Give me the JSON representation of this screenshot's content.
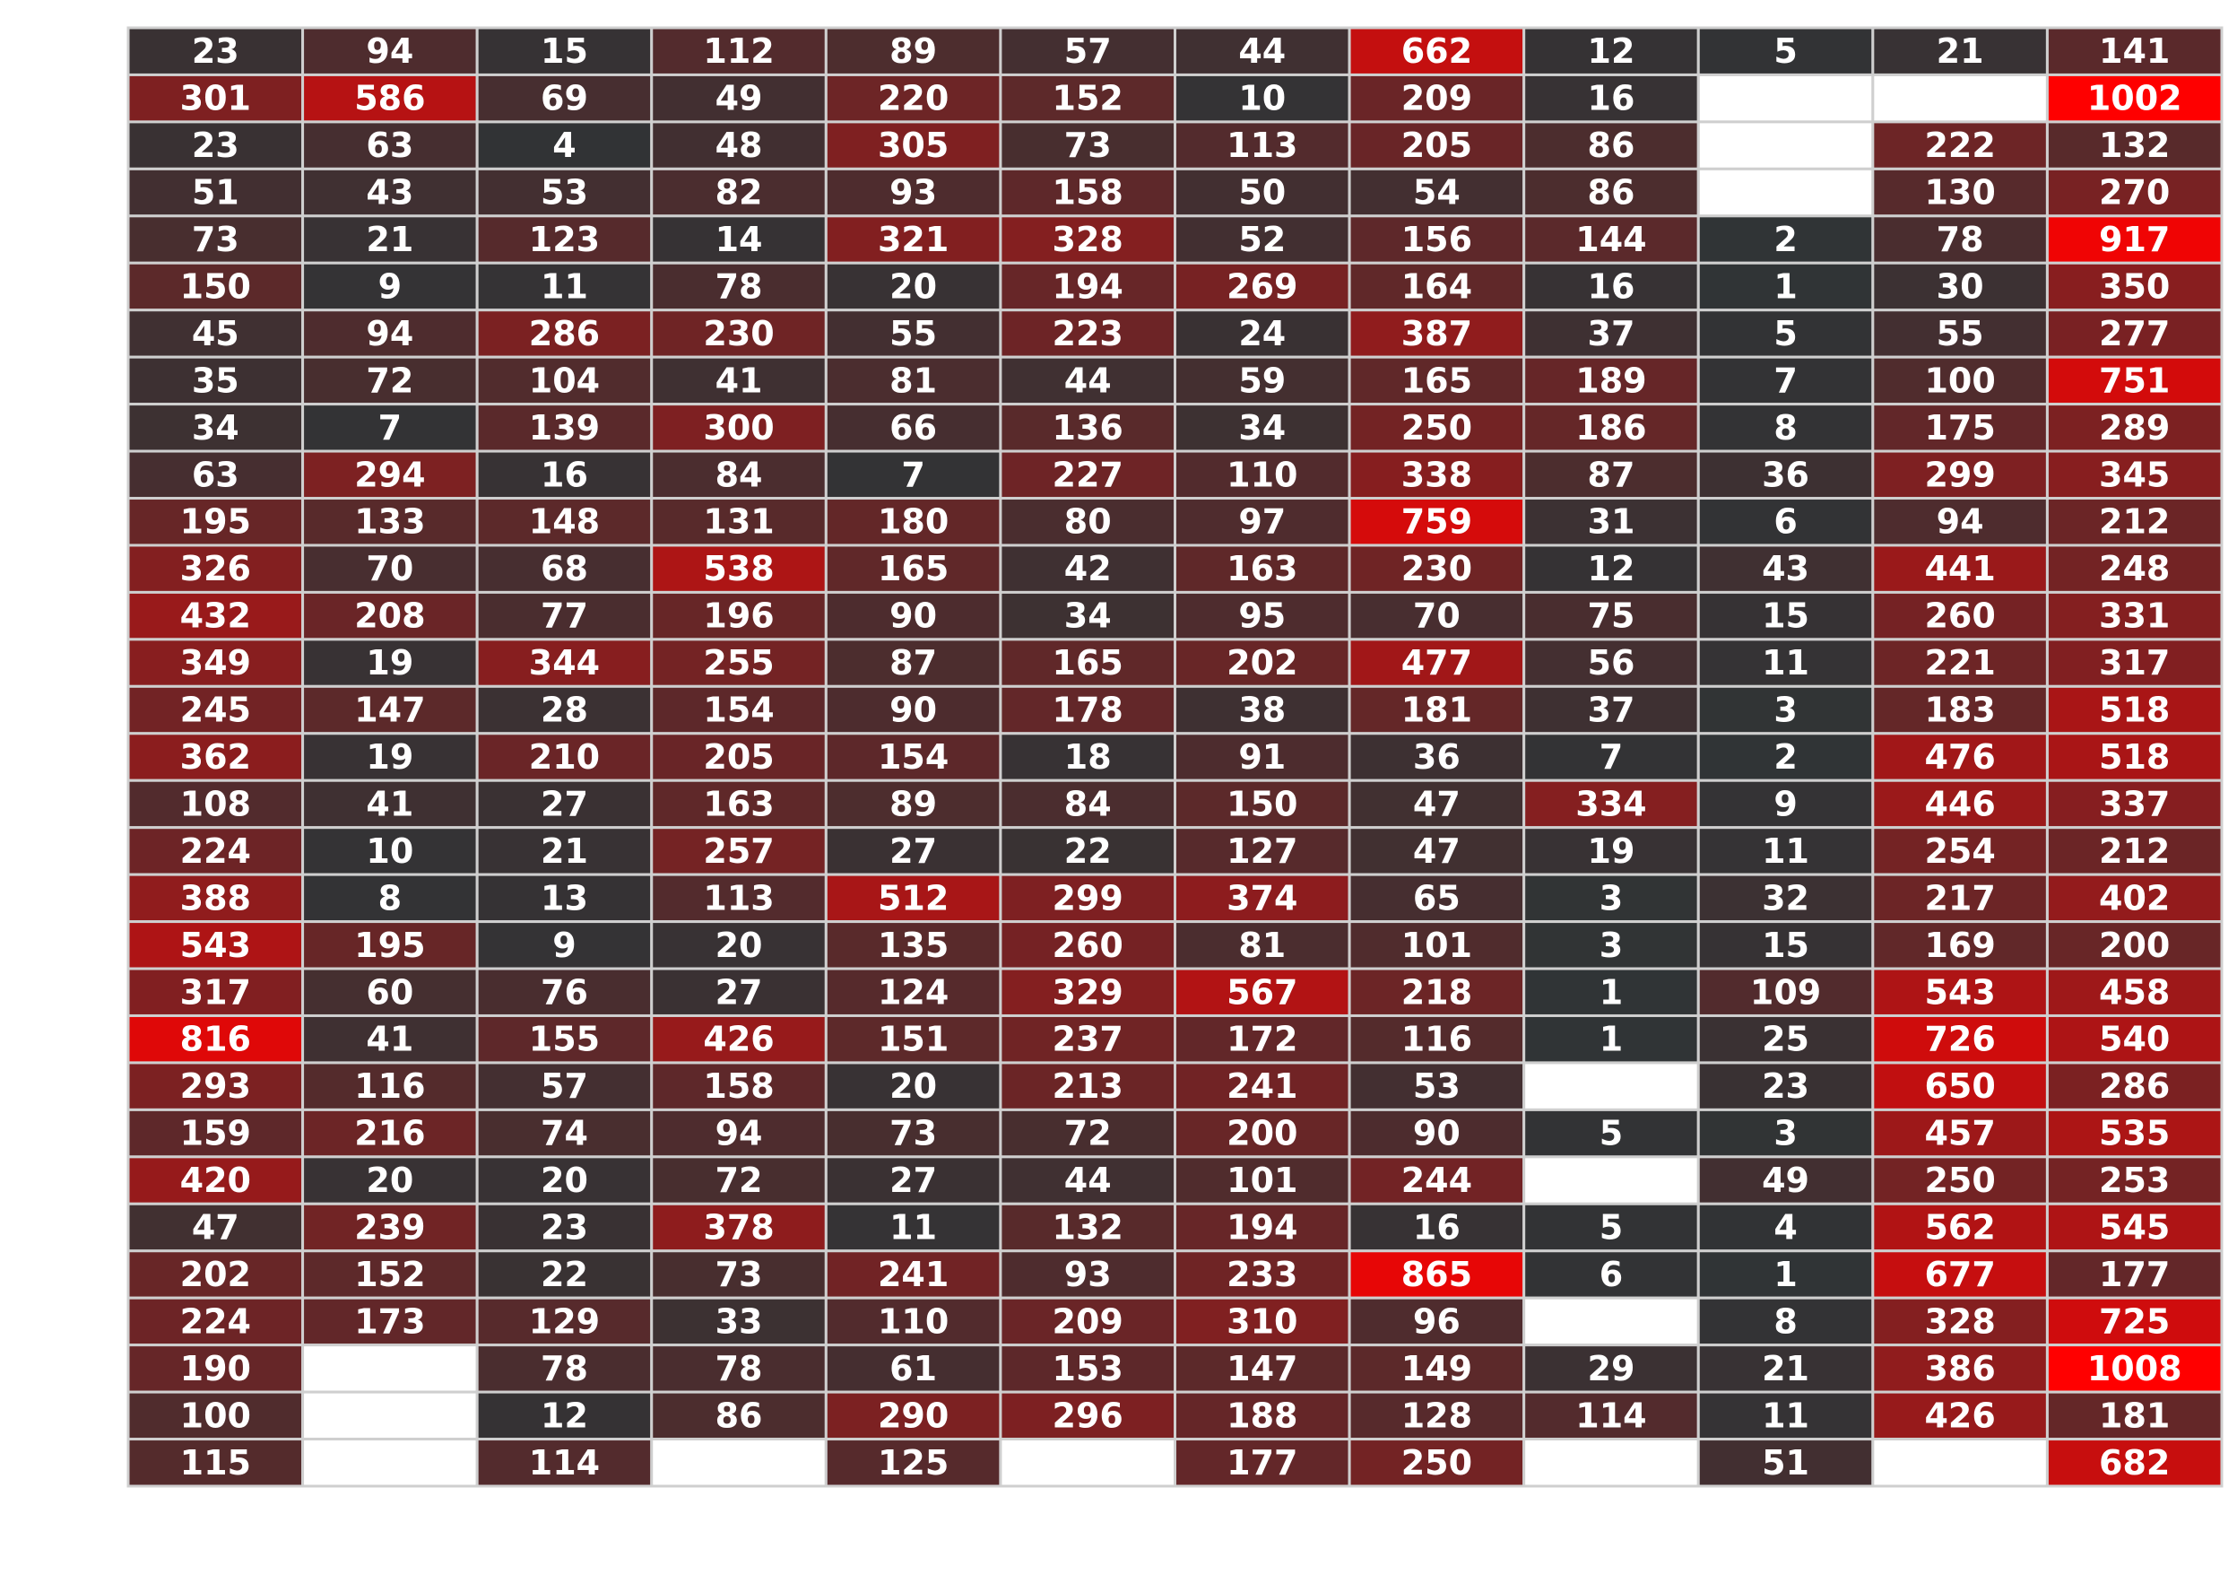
{
  "chart_data": {
    "type": "heatmap",
    "title": "",
    "xlabel": "",
    "ylabel": "",
    "grid": true,
    "legend": "none",
    "colors": {
      "low": "#2f3436",
      "high": "#ff0000",
      "missing": "#ffffff",
      "gridline": "#cfcfcf",
      "label": "#ffffff"
    },
    "color_range": [
      0,
      1008
    ],
    "values": [
      [
        23,
        94,
        15,
        112,
        89,
        57,
        44,
        662,
        12,
        5,
        21,
        141
      ],
      [
        301,
        586,
        69,
        49,
        220,
        152,
        10,
        209,
        16,
        null,
        null,
        1002
      ],
      [
        23,
        63,
        4,
        48,
        305,
        73,
        113,
        205,
        86,
        null,
        222,
        132
      ],
      [
        51,
        43,
        53,
        82,
        93,
        158,
        50,
        54,
        86,
        null,
        130,
        270
      ],
      [
        73,
        21,
        123,
        14,
        321,
        328,
        52,
        156,
        144,
        2,
        78,
        917
      ],
      [
        150,
        9,
        11,
        78,
        20,
        194,
        269,
        164,
        16,
        1,
        30,
        350
      ],
      [
        45,
        94,
        286,
        230,
        55,
        223,
        24,
        387,
        37,
        5,
        55,
        277
      ],
      [
        35,
        72,
        104,
        41,
        81,
        44,
        59,
        165,
        189,
        7,
        100,
        751
      ],
      [
        34,
        7,
        139,
        300,
        66,
        136,
        34,
        250,
        186,
        8,
        175,
        289
      ],
      [
        63,
        294,
        16,
        84,
        7,
        227,
        110,
        338,
        87,
        36,
        299,
        345
      ],
      [
        195,
        133,
        148,
        131,
        180,
        80,
        97,
        759,
        31,
        6,
        94,
        212
      ],
      [
        326,
        70,
        68,
        538,
        165,
        42,
        163,
        230,
        12,
        43,
        441,
        248
      ],
      [
        432,
        208,
        77,
        196,
        90,
        34,
        95,
        70,
        75,
        15,
        260,
        331
      ],
      [
        349,
        19,
        344,
        255,
        87,
        165,
        202,
        477,
        56,
        11,
        221,
        317
      ],
      [
        245,
        147,
        28,
        154,
        90,
        178,
        38,
        181,
        37,
        3,
        183,
        518
      ],
      [
        362,
        19,
        210,
        205,
        154,
        18,
        91,
        36,
        7,
        2,
        476,
        518
      ],
      [
        108,
        41,
        27,
        163,
        89,
        84,
        150,
        47,
        334,
        9,
        446,
        337
      ],
      [
        224,
        10,
        21,
        257,
        27,
        22,
        127,
        47,
        19,
        11,
        254,
        212
      ],
      [
        388,
        8,
        13,
        113,
        512,
        299,
        374,
        65,
        3,
        32,
        217,
        402
      ],
      [
        543,
        195,
        9,
        20,
        135,
        260,
        81,
        101,
        3,
        15,
        169,
        200
      ],
      [
        317,
        60,
        76,
        27,
        124,
        329,
        567,
        218,
        1,
        109,
        543,
        458
      ],
      [
        816,
        41,
        155,
        426,
        151,
        237,
        172,
        116,
        1,
        25,
        726,
        540
      ],
      [
        293,
        116,
        57,
        158,
        20,
        213,
        241,
        53,
        null,
        23,
        650,
        286
      ],
      [
        159,
        216,
        74,
        94,
        73,
        72,
        200,
        90,
        5,
        3,
        457,
        535
      ],
      [
        420,
        20,
        20,
        72,
        27,
        44,
        101,
        244,
        null,
        49,
        250,
        253
      ],
      [
        47,
        239,
        23,
        378,
        11,
        132,
        194,
        16,
        5,
        4,
        562,
        545
      ],
      [
        202,
        152,
        22,
        73,
        241,
        93,
        233,
        865,
        6,
        1,
        677,
        177
      ],
      [
        224,
        173,
        129,
        33,
        110,
        209,
        310,
        96,
        null,
        8,
        328,
        725
      ],
      [
        190,
        null,
        78,
        78,
        61,
        153,
        147,
        149,
        29,
        21,
        386,
        1008
      ],
      [
        100,
        null,
        12,
        86,
        290,
        296,
        188,
        128,
        114,
        11,
        426,
        181
      ],
      [
        115,
        null,
        114,
        null,
        125,
        null,
        177,
        250,
        null,
        51,
        null,
        682
      ]
    ]
  }
}
